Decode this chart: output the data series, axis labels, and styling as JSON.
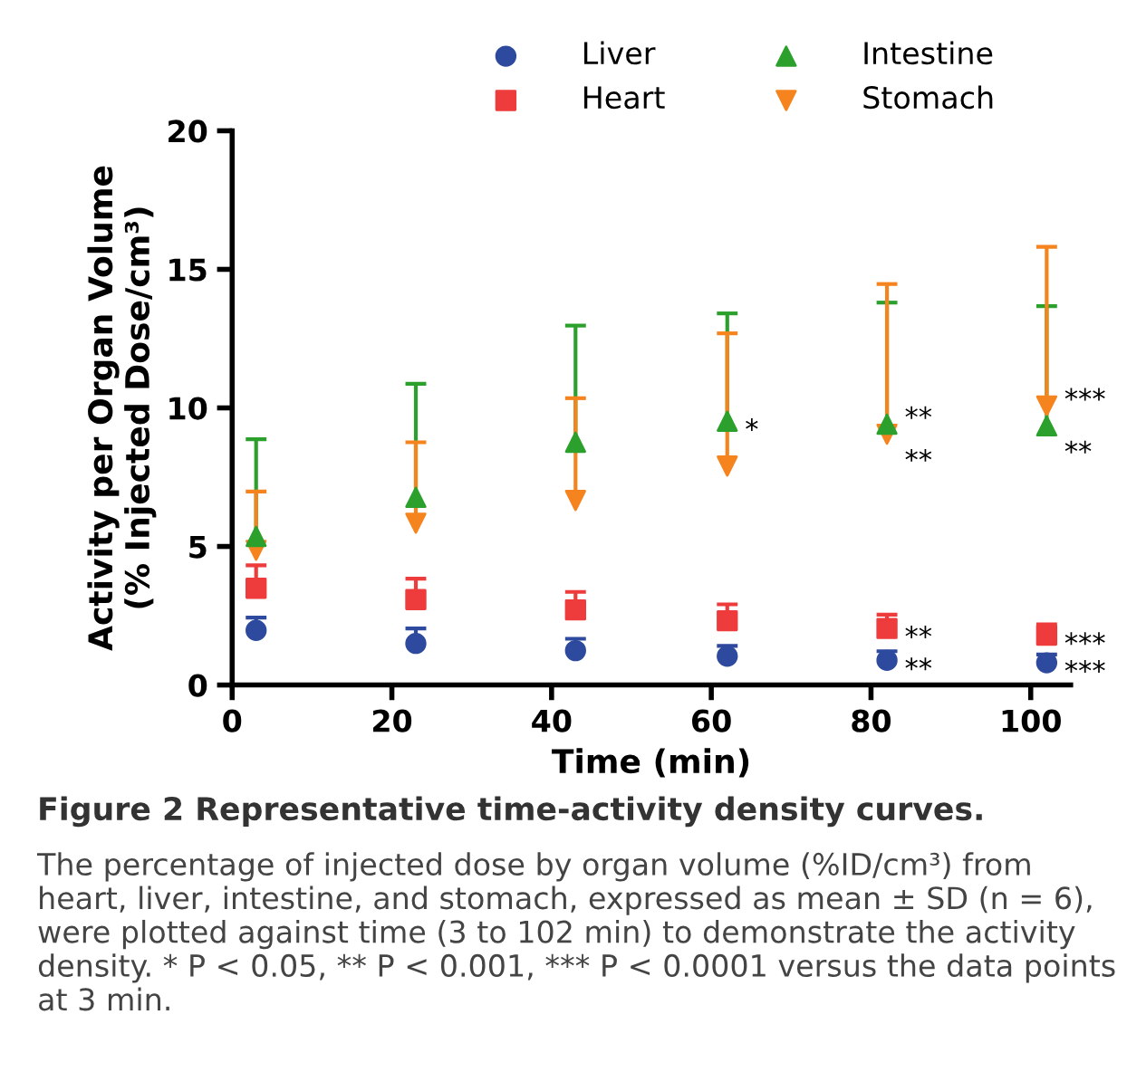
{
  "chart_data": {
    "type": "scatter",
    "xlabel": "Time (min)",
    "ylabel": "Activity per Organ Volume\n(% Injected Dose/cm³)",
    "x": [
      3,
      23,
      43,
      62,
      82,
      102
    ],
    "series": [
      {
        "name": "Liver",
        "color": "#2e4a9e",
        "marker": "circle",
        "values": [
          1.97,
          1.5,
          1.24,
          1.04,
          0.89,
          0.8
        ],
        "errors": [
          [
            1.97,
            2.43
          ],
          [
            1.5,
            2.04
          ],
          [
            1.24,
            1.67
          ],
          [
            1.04,
            1.41
          ],
          [
            0.89,
            1.22
          ],
          [
            0.8,
            1.1
          ]
        ]
      },
      {
        "name": "Heart",
        "color": "#ee3b3b",
        "marker": "square",
        "values": [
          3.49,
          3.08,
          2.71,
          2.32,
          2.04,
          1.8
        ],
        "errors": [
          [
            3.49,
            4.32
          ],
          [
            3.08,
            3.84
          ],
          [
            2.71,
            3.36
          ],
          [
            2.32,
            2.91
          ],
          [
            2.04,
            2.54
          ],
          [
            1.8,
            2.19
          ]
        ]
      },
      {
        "name": "Intestine",
        "color": "#2ca02c",
        "marker": "triangle",
        "values": [
          5.36,
          6.77,
          8.76,
          9.52,
          9.41,
          9.35
        ],
        "errors": [
          [
            5.36,
            8.87
          ],
          [
            6.77,
            10.87
          ],
          [
            8.76,
            12.97
          ],
          [
            9.52,
            13.41
          ],
          [
            9.41,
            13.8
          ],
          [
            9.35,
            13.67
          ]
        ]
      },
      {
        "name": "Stomach",
        "color": "#f5841f",
        "marker": "triangle_down",
        "values": [
          4.86,
          5.84,
          6.66,
          7.9,
          9.05,
          10.07
        ],
        "errors": [
          [
            4.86,
            6.98
          ],
          [
            5.84,
            8.76
          ],
          [
            6.66,
            10.35
          ],
          [
            7.9,
            12.69
          ],
          [
            9.05,
            14.47
          ],
          [
            10.07,
            15.81
          ]
        ]
      }
    ],
    "xlim": [
      0,
      105
    ],
    "ylim": [
      0,
      20
    ],
    "xticks": [
      0,
      20,
      40,
      60,
      80,
      100
    ],
    "yticks": [
      0,
      5,
      10,
      15,
      20
    ],
    "grid": false,
    "legend": "top",
    "annotations": [
      {
        "text": "*",
        "x": 62,
        "y": 9.52
      },
      {
        "text": "**",
        "x": 82,
        "y": 9.41
      },
      {
        "text": "**",
        "x": 82,
        "y": 9.05
      },
      {
        "text": "***",
        "x": 102,
        "y": 10.07
      },
      {
        "text": "**",
        "x": 102,
        "y": 9.35
      },
      {
        "text": "**",
        "x": 82,
        "y": 2.04
      },
      {
        "text": "**",
        "x": 82,
        "y": 0.89
      },
      {
        "text": "***",
        "x": 102,
        "y": 1.8
      },
      {
        "text": "***",
        "x": 102,
        "y": 0.8
      },
      "Figure 2 Representative time-activity density curves.",
      "The percentage of injected dose by organ volume (%ID/cm³) from heart, liver, intestine, and stomach, expressed as mean ± SD (n = 6), were plotted against time (3 to 102 min) to demonstrate the activity density. * P < 0.05, ** P < 0.001, *** P < 0.0001 versus the data points at 3 min."
    ]
  }
}
